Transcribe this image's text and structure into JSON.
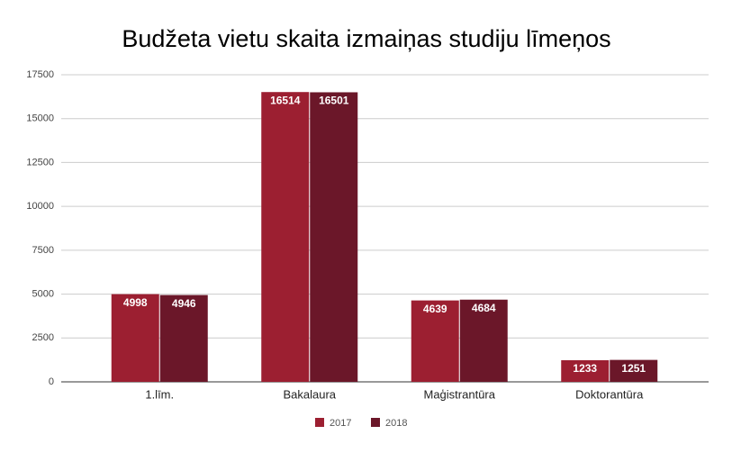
{
  "chart_data": {
    "type": "bar",
    "title": "Budžeta vietu skaita izmaiņas studiju līmeņos",
    "categories": [
      "1.līm.",
      "Bakalaura",
      "Maģistrantūra",
      "Doktorantūra"
    ],
    "series": [
      {
        "name": "2017",
        "color": "#9c1f31",
        "values": [
          4998,
          16514,
          4639,
          1233
        ]
      },
      {
        "name": "2018",
        "color": "#6b1729",
        "values": [
          4946,
          16501,
          4684,
          1251
        ]
      }
    ],
    "ylim": [
      0,
      17500
    ],
    "yticks": [
      0,
      2500,
      5000,
      7500,
      10000,
      12500,
      15000,
      17500
    ],
    "grid": true,
    "legend": "bottom"
  }
}
